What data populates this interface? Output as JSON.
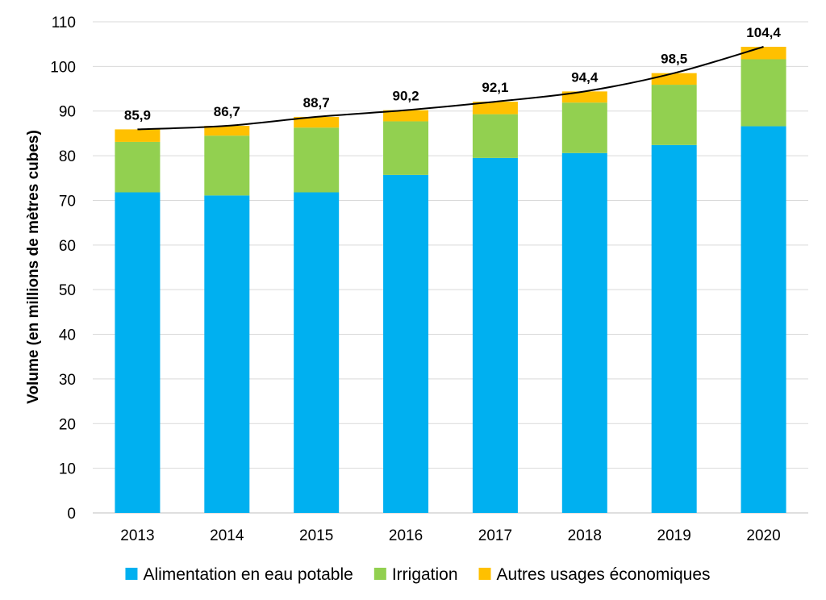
{
  "chart_data": {
    "type": "bar",
    "stacked": true,
    "categories": [
      "2013",
      "2014",
      "2015",
      "2016",
      "2017",
      "2018",
      "2019",
      "2020"
    ],
    "series": [
      {
        "name": "Alimentation en eau potable",
        "color": "#00b0f0",
        "values": [
          71.8,
          71.1,
          71.8,
          75.7,
          79.5,
          80.6,
          82.4,
          86.6
        ]
      },
      {
        "name": "Irrigation",
        "color": "#92d050",
        "values": [
          11.3,
          13.4,
          14.5,
          12.0,
          9.8,
          11.3,
          13.5,
          15.0
        ]
      },
      {
        "name": "Autres usages économiques",
        "color": "#ffc000",
        "values": [
          2.8,
          2.2,
          2.4,
          2.5,
          2.8,
          2.5,
          2.6,
          2.8
        ]
      }
    ],
    "totals": [
      85.9,
      86.7,
      88.7,
      90.2,
      92.1,
      94.4,
      98.5,
      104.4
    ],
    "total_labels": [
      "85,9",
      "86,7",
      "88,7",
      "90,2",
      "92,1",
      "94,4",
      "98,5",
      "104,4"
    ],
    "trend_line": {
      "color": "#000000"
    },
    "ylabel": "Volume (en millions de mètres cubes)",
    "xlabel": "",
    "ylim": [
      0,
      110
    ],
    "yticks": [
      0,
      10,
      20,
      30,
      40,
      50,
      60,
      70,
      80,
      90,
      100,
      110
    ],
    "grid": true,
    "gridline_color": "#d9d9d9",
    "legend_position": "bottom"
  }
}
